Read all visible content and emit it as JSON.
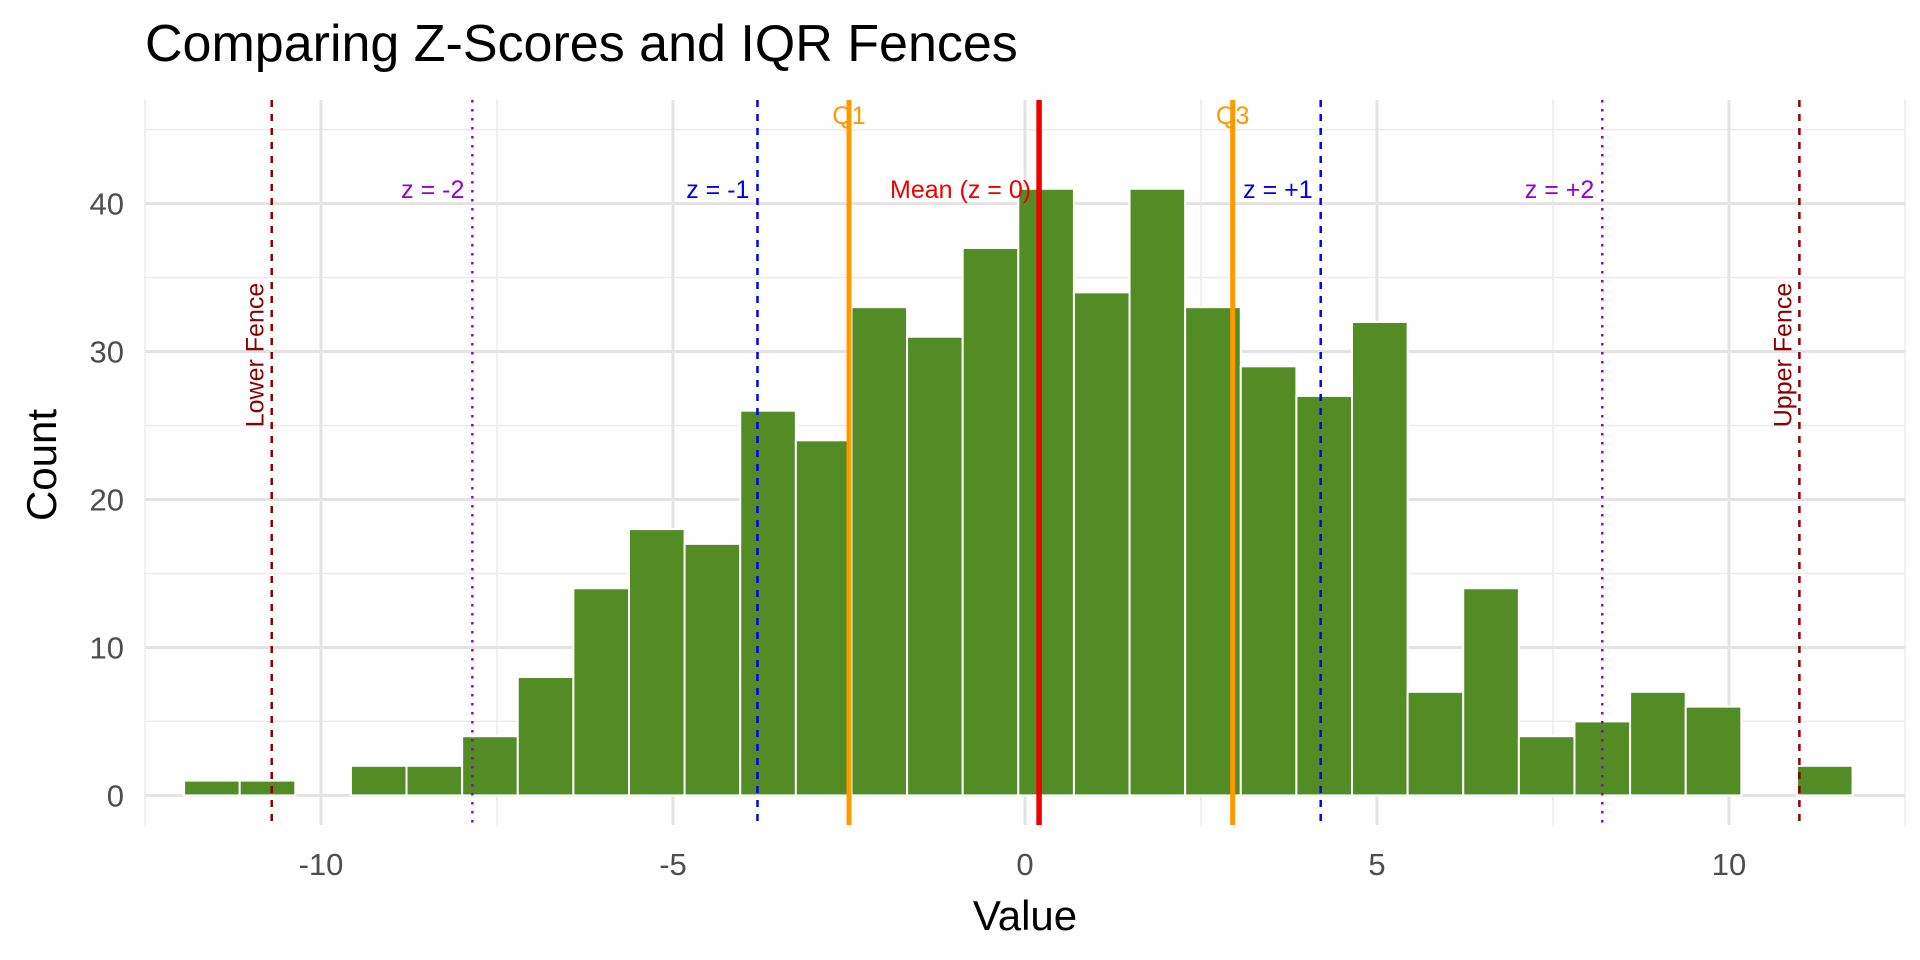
{
  "chart_data": {
    "type": "bar",
    "title": "Comparing Z-Scores and IQR Fences",
    "xlabel": "Value",
    "ylabel": "Count",
    "xlim": [
      -12.5,
      12.5
    ],
    "ylim": [
      -2,
      47
    ],
    "x_ticks": [
      -10,
      -5,
      0,
      5,
      10
    ],
    "y_ticks": [
      0,
      10,
      20,
      30,
      40
    ],
    "x_tick_labels": [
      "-10",
      "-5",
      "0",
      "5",
      "10"
    ],
    "y_tick_labels": [
      "0",
      "10",
      "20",
      "30",
      "40"
    ],
    "grid": true,
    "bin_width": 0.79,
    "bar_color": "#538B24",
    "bins": [
      {
        "x": -11.55,
        "count": 1
      },
      {
        "x": -10.76,
        "count": 1
      },
      {
        "x": -9.97,
        "count": 0
      },
      {
        "x": -9.18,
        "count": 2
      },
      {
        "x": -8.39,
        "count": 2
      },
      {
        "x": -7.6,
        "count": 4
      },
      {
        "x": -6.81,
        "count": 8
      },
      {
        "x": -6.02,
        "count": 14
      },
      {
        "x": -5.23,
        "count": 18
      },
      {
        "x": -4.44,
        "count": 17
      },
      {
        "x": -3.65,
        "count": 26
      },
      {
        "x": -2.86,
        "count": 24
      },
      {
        "x": -2.07,
        "count": 33
      },
      {
        "x": -1.28,
        "count": 31
      },
      {
        "x": -0.49,
        "count": 37
      },
      {
        "x": 0.3,
        "count": 41
      },
      {
        "x": 1.09,
        "count": 34
      },
      {
        "x": 1.88,
        "count": 41
      },
      {
        "x": 2.67,
        "count": 33
      },
      {
        "x": 3.46,
        "count": 29
      },
      {
        "x": 4.25,
        "count": 27
      },
      {
        "x": 5.04,
        "count": 32
      },
      {
        "x": 5.83,
        "count": 7
      },
      {
        "x": 6.62,
        "count": 14
      },
      {
        "x": 7.41,
        "count": 4
      },
      {
        "x": 8.2,
        "count": 5
      },
      {
        "x": 8.99,
        "count": 7
      },
      {
        "x": 9.78,
        "count": 6
      },
      {
        "x": 10.57,
        "count": 0
      },
      {
        "x": 11.36,
        "count": 2
      }
    ],
    "reference_lines": [
      {
        "id": "lower-fence",
        "label": "Lower Fence",
        "x": -10.7,
        "color": "#8B0000",
        "style": "dashed",
        "label_orientation": "vertical"
      },
      {
        "id": "upper-fence",
        "label": "Upper Fence",
        "x": 11.0,
        "color": "#8B0000",
        "style": "dashed",
        "label_orientation": "vertical"
      },
      {
        "id": "z-minus-2",
        "label": "z = -2",
        "x": -7.85,
        "color": "#9400D3",
        "style": "dotted",
        "label_side": "left"
      },
      {
        "id": "z-plus-2",
        "label": "z = +2",
        "x": 8.2,
        "color": "#9400D3",
        "style": "dotted",
        "label_side": "left"
      },
      {
        "id": "z-minus-1",
        "label": "z = -1",
        "x": -3.8,
        "color": "#0000EE",
        "style": "dashed",
        "label_side": "left"
      },
      {
        "id": "z-plus-1",
        "label": "z = +1",
        "x": 4.2,
        "color": "#0000EE",
        "style": "dashed",
        "label_side": "left"
      },
      {
        "id": "q1",
        "label": "Q1",
        "x": -2.5,
        "color": "#FF9900",
        "style": "solid",
        "label_side": "top"
      },
      {
        "id": "q3",
        "label": "Q3",
        "x": 2.95,
        "color": "#FF9900",
        "style": "solid",
        "label_side": "top"
      },
      {
        "id": "mean",
        "label": "Mean (z = 0)",
        "x": 0.2,
        "color": "#EE0000",
        "style": "solid",
        "label_side": "left"
      }
    ]
  }
}
